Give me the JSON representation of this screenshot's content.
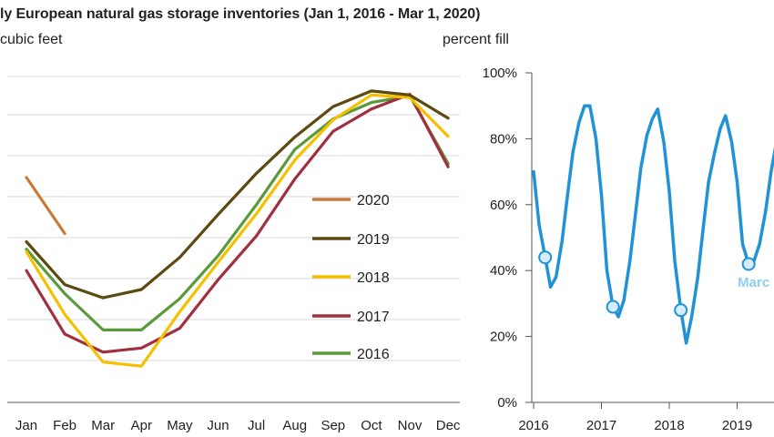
{
  "title": "ly European natural gas storage inventories (Jan 1, 2016 - Mar 1, 2020)",
  "chart_data": [
    {
      "type": "line",
      "ylabel": "cubic feet",
      "categories": [
        "Jan",
        "Feb",
        "Mar",
        "Apr",
        "May",
        "Jun",
        "Jul",
        "Aug",
        "Sep",
        "Oct",
        "Nov",
        "Dec"
      ],
      "legend": "right-center",
      "grid": true,
      "series": [
        {
          "name": "2020",
          "color": "#c87a3a",
          "values": [
            2.73,
            2.05,
            null,
            null,
            null,
            null,
            null,
            null,
            null,
            null,
            null,
            null
          ]
        },
        {
          "name": "2019",
          "color": "#5c4a10",
          "values": [
            1.95,
            1.43,
            1.27,
            1.37,
            1.76,
            2.28,
            2.78,
            3.22,
            3.59,
            3.78,
            3.73,
            3.45
          ]
        },
        {
          "name": "2018",
          "color": "#f5c000",
          "values": [
            1.83,
            1.07,
            0.49,
            0.44,
            1.1,
            1.7,
            2.29,
            2.94,
            3.43,
            3.73,
            3.7,
            3.23
          ]
        },
        {
          "name": "2017",
          "color": "#a03040",
          "values": [
            1.6,
            0.83,
            0.61,
            0.66,
            0.9,
            1.49,
            2.02,
            2.71,
            3.29,
            3.56,
            3.74,
            2.86
          ]
        },
        {
          "name": "2016",
          "color": "#5a9a3a",
          "values": [
            1.86,
            1.32,
            0.88,
            0.88,
            1.26,
            1.78,
            2.4,
            3.07,
            3.44,
            3.64,
            3.72,
            2.9
          ]
        }
      ]
    },
    {
      "type": "line",
      "ylabel": "percent fill",
      "yticks": [
        "0%",
        "20%",
        "40%",
        "60%",
        "80%",
        "100%"
      ],
      "ylim": [
        0,
        100
      ],
      "xticks": [
        "2016",
        "2017",
        "2018",
        "2019"
      ],
      "color": "#1f93d6",
      "series": [
        {
          "x": [
            2016.0,
            2016.08,
            2016.17,
            2016.25,
            2016.33,
            2016.42,
            2016.5,
            2016.58,
            2016.67,
            2016.75,
            2016.83,
            2016.92,
            2017.0,
            2017.08,
            2017.17,
            2017.25,
            2017.33,
            2017.42,
            2017.5,
            2017.58,
            2017.67,
            2017.75,
            2017.83,
            2017.92,
            2018.0,
            2018.08,
            2018.17,
            2018.25,
            2018.33,
            2018.42,
            2018.5,
            2018.58,
            2018.67,
            2018.75,
            2018.83,
            2018.92,
            2019.0,
            2019.08,
            2019.17,
            2019.25,
            2019.33,
            2019.42,
            2019.5,
            2019.58
          ],
          "y": [
            70,
            54,
            44,
            35,
            38,
            49,
            63,
            76,
            85,
            90,
            90,
            80,
            63,
            40,
            29,
            26,
            31,
            43,
            57,
            71,
            81,
            86,
            89,
            79,
            64,
            43,
            28,
            18,
            26,
            38,
            53,
            67,
            76,
            83,
            87,
            79,
            67,
            48,
            42,
            43,
            48,
            58,
            70,
            79
          ]
        }
      ],
      "markers": [
        {
          "x": 2016.17,
          "y": 44
        },
        {
          "x": 2017.17,
          "y": 29
        },
        {
          "x": 2018.17,
          "y": 28
        },
        {
          "x": 2019.17,
          "y": 42
        }
      ],
      "annotation": "Marc"
    }
  ]
}
